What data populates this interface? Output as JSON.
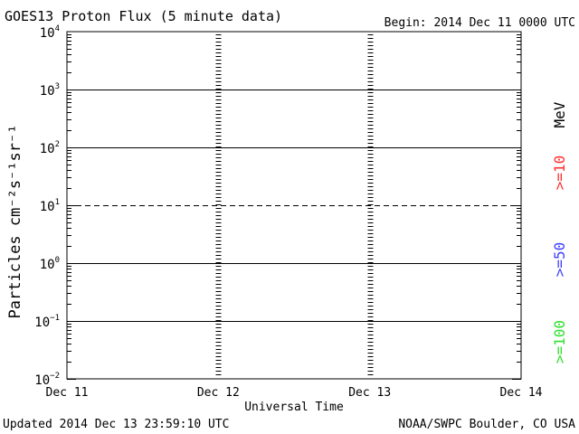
{
  "header": {
    "title": "GOES13 Proton Flux (5 minute data)",
    "begin": "Begin: 2014 Dec 11 0000 UTC"
  },
  "footer": {
    "updated": "Updated 2014 Dec 13 23:59:10 UTC",
    "credit": "NOAA/SWPC Boulder, CO USA"
  },
  "chart_data": {
    "type": "line",
    "title": "GOES13 Proton Flux (5 minute data)",
    "xlabel": "Universal Time",
    "ylabel": "Particles cm⁻²s⁻¹sr⁻¹",
    "y_scale": "log",
    "ylim": [
      0.01,
      10000
    ],
    "xlim": [
      "Dec 11",
      "Dec 14"
    ],
    "x_ticks": [
      "Dec 11",
      "Dec 12",
      "Dec 13",
      "Dec 14"
    ],
    "y_ticks": [
      {
        "value": 10000,
        "base": "10",
        "exp": "4"
      },
      {
        "value": 1000,
        "base": "10",
        "exp": "3"
      },
      {
        "value": 100,
        "base": "10",
        "exp": "2"
      },
      {
        "value": 10,
        "base": "10",
        "exp": "1"
      },
      {
        "value": 1,
        "base": "10",
        "exp": "0"
      },
      {
        "value": 0.1,
        "base": "10",
        "exp": "−1"
      },
      {
        "value": 0.01,
        "base": "10",
        "exp": "−2"
      }
    ],
    "reference_lines": [
      {
        "value": 1000,
        "style": "solid"
      },
      {
        "value": 100,
        "style": "solid"
      },
      {
        "value": 10,
        "style": "dashed"
      },
      {
        "value": 1,
        "style": "solid"
      },
      {
        "value": 0.1,
        "style": "solid"
      }
    ],
    "legend_placement": "right",
    "legend": {
      "unit": "MeV",
      "entries": [
        {
          "label": ">=10",
          "color": "#ff3030"
        },
        {
          "label": ">=50",
          "color": "#4040ff"
        },
        {
          "label": ">=100",
          "color": "#30e030"
        }
      ]
    },
    "series": []
  }
}
